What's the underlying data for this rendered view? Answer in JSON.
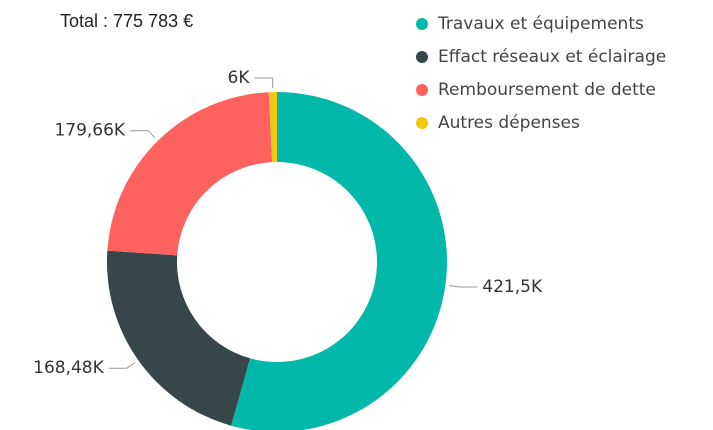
{
  "chart_data": {
    "type": "donut",
    "title": "Total : 775 783 €",
    "categories": [
      "Travaux et équipements",
      "Effact réseaux et éclairage",
      "Remboursement de dette",
      "Autres dépenses"
    ],
    "values": [
      421.5,
      168.48,
      179.66,
      6
    ],
    "value_labels": [
      "421,5K",
      "168,48K",
      "179,66K",
      "6K"
    ],
    "colors": [
      "#01b8aa",
      "#374649",
      "#fd625e",
      "#f2c80f"
    ]
  }
}
